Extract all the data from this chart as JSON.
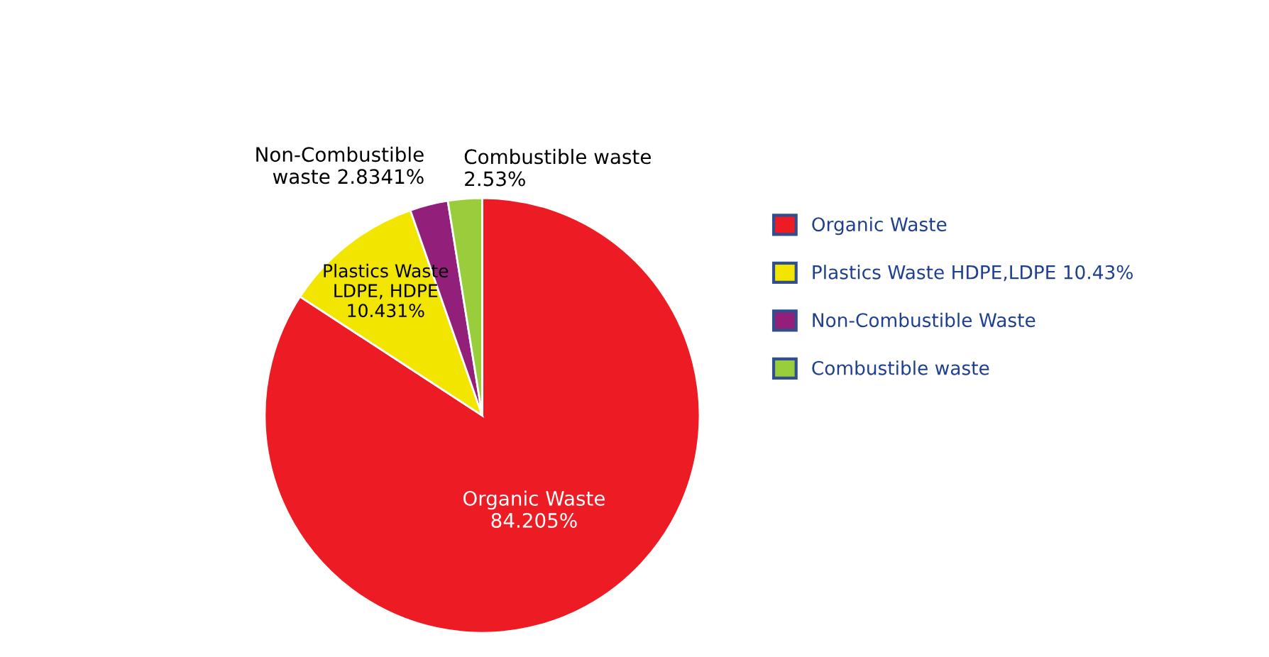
{
  "chart_data": {
    "type": "pie",
    "categories": [
      "Organic Waste",
      "Plastics Waste HDPE,LDPE 10.43%",
      "Non-Combustible Waste",
      "Combustible waste"
    ],
    "values": [
      84.205,
      10.431,
      2.8341,
      2.53
    ],
    "colors": [
      "#ed1c24",
      "#f2e600",
      "#92207a",
      "#9acd3c"
    ],
    "value_labels": [
      "Organic Waste\n84.205%",
      "Plastics Waste\nLDPE, HDPE\n10.431%",
      "Non-Combustible\nwaste 2.8341%",
      "Combustible waste\n2.53%"
    ],
    "legend": "right"
  }
}
